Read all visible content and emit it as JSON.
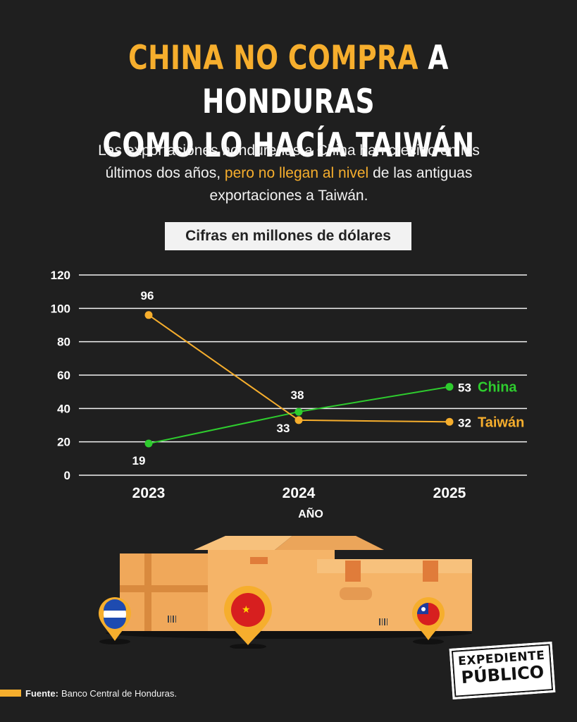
{
  "header": {
    "title_highlight": "CHINA NO COMPRA",
    "title_rest": "A HONDURAS",
    "title_line2": "COMO LO HACÍA TAIWÁN",
    "subtitle_part1": "Las exportaciones hondureñas a China han crecido en los últimos dos años,",
    "subtitle_highlight": "pero no llegan al nivel",
    "subtitle_part2": "de las antiguas exportaciones a Taiwán."
  },
  "units_label": "Cifras en millones de dólares",
  "chart_data": {
    "type": "line",
    "x": [
      "2023",
      "2024",
      "2025"
    ],
    "xlabel": "AÑO",
    "ylabel": "",
    "ylim": [
      0,
      120
    ],
    "yticks": [
      0,
      20,
      40,
      60,
      80,
      100,
      120
    ],
    "grid": true,
    "series": [
      {
        "name": "China",
        "values": [
          19,
          38,
          53
        ],
        "color": "#2ecc2e"
      },
      {
        "name": "Taiwán",
        "values": [
          96,
          33,
          32
        ],
        "color": "#f6ae2d"
      }
    ]
  },
  "colors": {
    "accent": "#f6ae2d",
    "background": "#1f1f1f",
    "china": "#2ecc2e"
  },
  "illustration": {
    "subject": "cardboard boxes with location pins",
    "pins": [
      "honduras-flag-icon",
      "china-flag-icon",
      "taiwan-flag-icon"
    ]
  },
  "source": {
    "label": "Fuente:",
    "text": "Banco Central de Honduras."
  },
  "logo": {
    "line1": "EXPEDIENTE",
    "line2": "PÚBLICO"
  }
}
